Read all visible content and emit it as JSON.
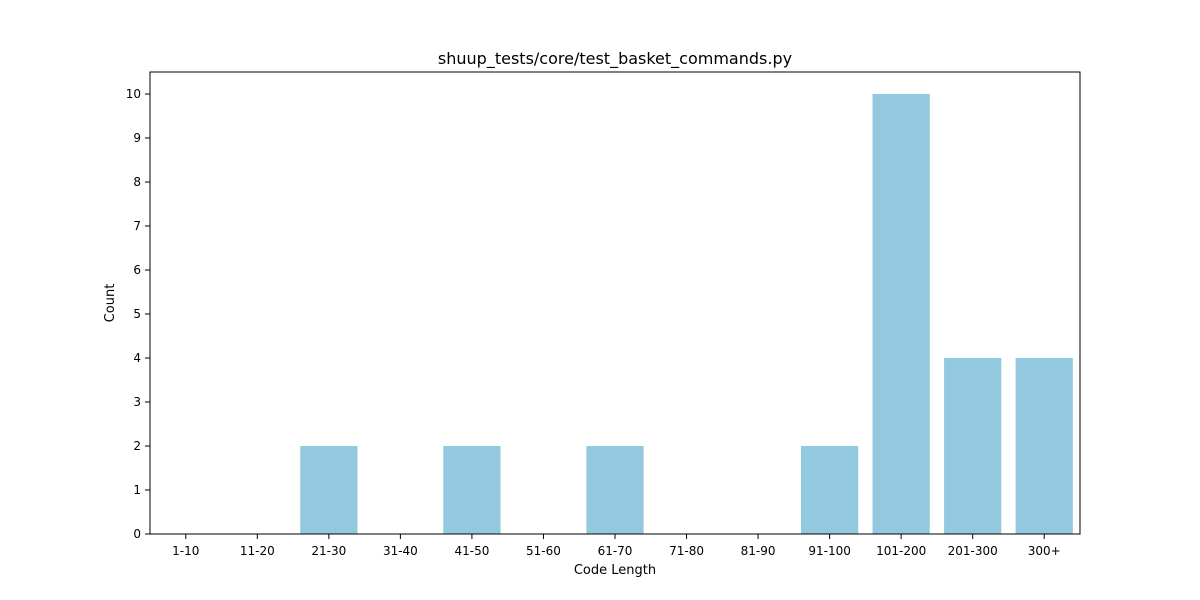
{
  "chart_data": {
    "type": "bar",
    "title": "shuup_tests/core/test_basket_commands.py",
    "xlabel": "Code Length",
    "ylabel": "Count",
    "categories": [
      "1-10",
      "11-20",
      "21-30",
      "31-40",
      "41-50",
      "51-60",
      "61-70",
      "71-80",
      "81-90",
      "91-100",
      "101-200",
      "201-300",
      "300+"
    ],
    "values": [
      0,
      0,
      2,
      0,
      2,
      0,
      2,
      0,
      0,
      2,
      10,
      4,
      4
    ],
    "ylim": [
      0,
      10.5
    ],
    "yticks": [
      "0",
      "1",
      "2",
      "3",
      "4",
      "5",
      "6",
      "7",
      "8",
      "9",
      "10"
    ],
    "grid": false,
    "bar_color": "#92c9df"
  }
}
